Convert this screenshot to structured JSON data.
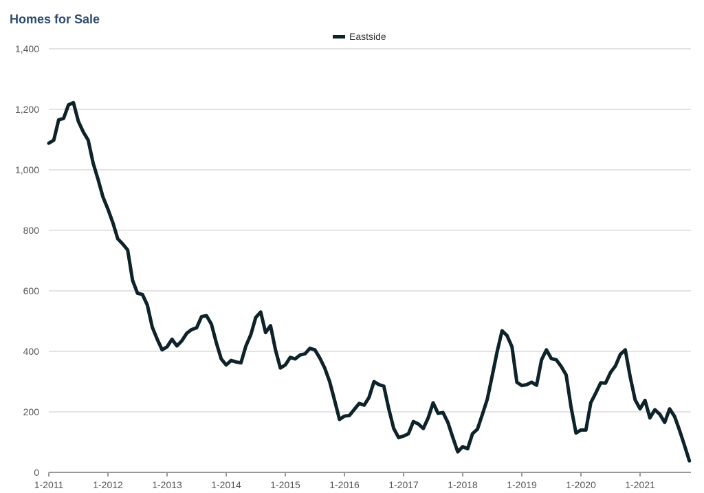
{
  "chart_data": {
    "type": "line",
    "title": "Homes for Sale",
    "xlabel": "",
    "ylabel": "",
    "ylim": [
      0,
      1400
    ],
    "yticks": [
      "0",
      "200",
      "400",
      "600",
      "800",
      "1,000",
      "1,200",
      "1,400"
    ],
    "ytick_values": [
      0,
      200,
      400,
      600,
      800,
      1000,
      1200,
      1400
    ],
    "xticks": [
      "1-2011",
      "1-2012",
      "1-2013",
      "1-2014",
      "1-2015",
      "1-2016",
      "1-2017",
      "1-2018",
      "1-2019",
      "1-2020",
      "1-2021"
    ],
    "x_start": "1-2011",
    "x_end": "11-2021",
    "grid": "horizontal",
    "legend_position": "top-center",
    "line_color": "#0d2329",
    "series": [
      {
        "name": "Eastside",
        "values": [
          1088,
          1098,
          1165,
          1170,
          1215,
          1222,
          1160,
          1125,
          1098,
          1022,
          968,
          910,
          870,
          825,
          772,
          755,
          735,
          635,
          592,
          588,
          553,
          480,
          440,
          405,
          415,
          440,
          418,
          435,
          460,
          472,
          478,
          515,
          518,
          490,
          428,
          375,
          355,
          370,
          365,
          362,
          418,
          455,
          512,
          530,
          462,
          485,
          405,
          345,
          355,
          380,
          375,
          388,
          392,
          410,
          405,
          378,
          345,
          300,
          238,
          175,
          186,
          188,
          208,
          228,
          222,
          248,
          300,
          290,
          285,
          210,
          145,
          115,
          120,
          128,
          168,
          160,
          145,
          180,
          230,
          195,
          198,
          165,
          115,
          68,
          85,
          78,
          128,
          143,
          192,
          242,
          320,
          400,
          468,
          452,
          415,
          298,
          287,
          290,
          298,
          288,
          372,
          405,
          376,
          372,
          350,
          322,
          215,
          130,
          140,
          140,
          230,
          262,
          296,
          295,
          330,
          352,
          390,
          405,
          315,
          240,
          210,
          238,
          180,
          207,
          192,
          165,
          210,
          185,
          140,
          90,
          38
        ]
      }
    ]
  }
}
